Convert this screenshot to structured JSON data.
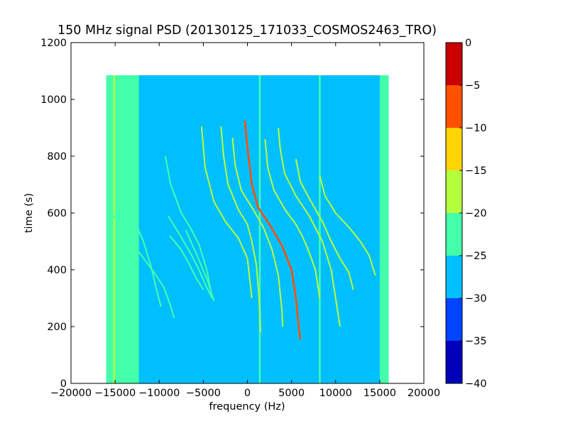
{
  "chart_data": {
    "type": "heatmap",
    "title": "150 MHz signal PSD (20130125_171033_COSMOS2463_TRO)",
    "xlabel": "frequency (Hz)",
    "ylabel": "time (s)",
    "xlim": [
      -20000,
      20000
    ],
    "ylim": [
      0,
      1200
    ],
    "x_ticks": [
      -20000,
      -15000,
      -10000,
      -5000,
      0,
      5000,
      10000,
      15000,
      20000
    ],
    "x_tick_labels": [
      "−20000",
      "−15000",
      "−10000",
      "−5000",
      "0",
      "5000",
      "10000",
      "15000",
      "20000"
    ],
    "y_ticks": [
      0,
      200,
      400,
      600,
      800,
      1000,
      1200
    ],
    "y_tick_labels": [
      "0",
      "200",
      "400",
      "600",
      "800",
      "1000",
      "1200"
    ],
    "data_extent": {
      "x": [
        -16000,
        16000
      ],
      "y": [
        0,
        1085
      ]
    },
    "background_level": -27.5,
    "colorbar": {
      "range": [
        -40,
        0
      ],
      "levels": [
        -40,
        -35,
        -30,
        -25,
        -20,
        -15,
        -10,
        -5,
        0
      ],
      "tick_labels": [
        "0",
        "−5",
        "−10",
        "−15",
        "−20",
        "−25",
        "−30",
        "−35",
        "−40"
      ],
      "colors": [
        "#0000bb",
        "#0044ff",
        "#00bfff",
        "#44ffaa",
        "#b4ff3c",
        "#ffd400",
        "#ff5000",
        "#c80000"
      ]
    },
    "edge_bands": [
      {
        "x_range": [
          -16000,
          -12300
        ],
        "level": -22.5
      },
      {
        "x_range": [
          15000,
          16000
        ],
        "level": -22.5
      }
    ],
    "vertical_lines": [
      {
        "x": -15100,
        "y_range": [
          0,
          1085
        ],
        "level": -17.5
      },
      {
        "x": 1400,
        "y_range": [
          0,
          1085
        ],
        "level": -22.5
      },
      {
        "x": 8200,
        "y_range": [
          0,
          1085
        ],
        "level": -22.5
      }
    ],
    "series": [
      {
        "level": -7.5,
        "points": [
          [
            -300,
            925
          ],
          [
            0,
            830
          ],
          [
            500,
            700
          ],
          [
            1200,
            620
          ],
          [
            2500,
            560
          ],
          [
            4000,
            480
          ],
          [
            5000,
            400
          ],
          [
            5500,
            300
          ],
          [
            5800,
            200
          ],
          [
            6000,
            155
          ]
        ]
      },
      {
        "level": -17.5,
        "points": [
          [
            -3000,
            905
          ],
          [
            -2700,
            800
          ],
          [
            -2200,
            700
          ],
          [
            -1000,
            610
          ],
          [
            0,
            560
          ],
          [
            500,
            500
          ],
          [
            1000,
            420
          ],
          [
            1300,
            310
          ],
          [
            1500,
            180
          ]
        ]
      },
      {
        "level": -17.5,
        "points": [
          [
            -1700,
            865
          ],
          [
            -1400,
            770
          ],
          [
            -700,
            680
          ],
          [
            700,
            610
          ],
          [
            1800,
            550
          ],
          [
            2800,
            470
          ],
          [
            3500,
            380
          ],
          [
            3900,
            260
          ],
          [
            4000,
            200
          ]
        ]
      },
      {
        "level": -17.5,
        "points": [
          [
            -5200,
            905
          ],
          [
            -4800,
            760
          ],
          [
            -3800,
            640
          ],
          [
            -2500,
            570
          ],
          [
            -1000,
            510
          ],
          [
            0,
            440
          ],
          [
            500,
            300
          ]
        ]
      },
      {
        "level": -17.5,
        "points": [
          [
            2000,
            860
          ],
          [
            2300,
            760
          ],
          [
            3000,
            680
          ],
          [
            4300,
            610
          ],
          [
            5500,
            560
          ],
          [
            6200,
            520
          ],
          [
            6900,
            470
          ],
          [
            7700,
            400
          ],
          [
            8200,
            300
          ]
        ]
      },
      {
        "level": -17.5,
        "points": [
          [
            3500,
            900
          ],
          [
            3700,
            830
          ],
          [
            4200,
            740
          ],
          [
            5500,
            660
          ],
          [
            7000,
            590
          ],
          [
            8500,
            500
          ],
          [
            9500,
            400
          ],
          [
            10200,
            260
          ],
          [
            10500,
            200
          ]
        ]
      },
      {
        "level": -20,
        "points": [
          [
            5500,
            790
          ],
          [
            6000,
            710
          ],
          [
            7200,
            640
          ],
          [
            8500,
            570
          ],
          [
            9500,
            500
          ],
          [
            10500,
            440
          ],
          [
            11500,
            390
          ],
          [
            12000,
            330
          ]
        ]
      },
      {
        "level": -20,
        "points": [
          [
            8200,
            730
          ],
          [
            8800,
            660
          ],
          [
            10000,
            600
          ],
          [
            11500,
            550
          ],
          [
            12800,
            500
          ],
          [
            13800,
            450
          ],
          [
            14500,
            380
          ]
        ]
      },
      {
        "level": -22,
        "points": [
          [
            -12600,
            560
          ],
          [
            -11800,
            500
          ],
          [
            -11000,
            420
          ],
          [
            -10300,
            330
          ],
          [
            -9800,
            270
          ]
        ]
      },
      {
        "level": -22,
        "points": [
          [
            -9300,
            800
          ],
          [
            -8700,
            700
          ],
          [
            -7500,
            600
          ],
          [
            -6500,
            550
          ],
          [
            -5500,
            490
          ],
          [
            -4600,
            400
          ],
          [
            -4000,
            300
          ]
        ]
      },
      {
        "level": -23,
        "points": [
          [
            -7000,
            540
          ],
          [
            -5700,
            450
          ],
          [
            -4500,
            360
          ],
          [
            -3800,
            290
          ]
        ]
      },
      {
        "level": -23,
        "points": [
          [
            -15700,
            615
          ],
          [
            -15200,
            590
          ],
          [
            -14500,
            560
          ]
        ]
      },
      {
        "level": -23,
        "points": [
          [
            -13800,
            530
          ],
          [
            -13000,
            490
          ],
          [
            -12000,
            450
          ],
          [
            -10800,
            400
          ],
          [
            -9500,
            340
          ],
          [
            -8800,
            280
          ],
          [
            -8300,
            230
          ]
        ]
      },
      {
        "level": -23,
        "points": [
          [
            -8800,
            520
          ],
          [
            -7500,
            470
          ],
          [
            -6600,
            420
          ],
          [
            -5800,
            370
          ],
          [
            -5000,
            330
          ]
        ]
      },
      {
        "level": -24,
        "points": [
          [
            -9000,
            590
          ],
          [
            -7600,
            520
          ],
          [
            -6300,
            450
          ],
          [
            -5500,
            400
          ],
          [
            -4800,
            350
          ],
          [
            -4000,
            300
          ]
        ]
      }
    ]
  }
}
